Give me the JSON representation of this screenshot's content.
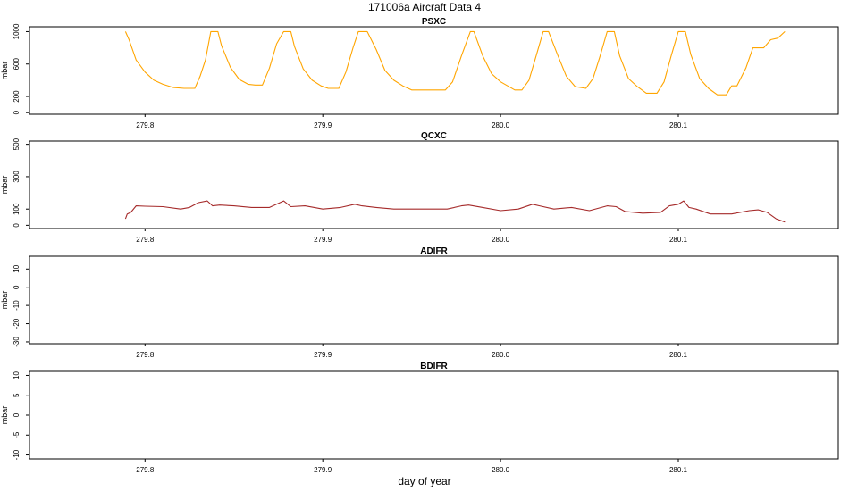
{
  "figure": {
    "title": "171006a   Aircraft Data 4",
    "xlabel": "day of year"
  },
  "chart_data": [
    {
      "type": "line",
      "title": "PSXC",
      "ylabel": "mbar",
      "xlim": [
        279.735,
        280.19
      ],
      "ylim": [
        -20,
        1060
      ],
      "yticks": [
        0,
        200,
        600,
        1000
      ],
      "xticks": [
        279.8,
        279.9,
        280.0,
        280.1
      ],
      "xtick_labels": [
        "279.8",
        "279.9",
        "280.0",
        "280.1"
      ],
      "color": "#FFA500",
      "series": [
        {
          "x": [
            279.789,
            279.791,
            279.795,
            279.8,
            279.805,
            279.81,
            279.816,
            279.822,
            279.828,
            279.831,
            279.834,
            279.837,
            279.841,
            279.843,
            279.848,
            279.853,
            279.858,
            279.862,
            279.866,
            279.87,
            279.874,
            279.878,
            279.882,
            279.884,
            279.889,
            279.894,
            279.899,
            279.903,
            279.909,
            279.913,
            279.917,
            279.92,
            279.925,
            279.93,
            279.935,
            279.94,
            279.945,
            279.95,
            279.955,
            279.96,
            279.965,
            279.969,
            279.973,
            279.978,
            279.983,
            279.985,
            279.99,
            279.995,
            280.0,
            280.008,
            280.012,
            280.016,
            280.02,
            280.024,
            280.027,
            280.032,
            280.037,
            280.042,
            280.048,
            280.052,
            280.056,
            280.06,
            280.064,
            280.067,
            280.072,
            280.077,
            280.082,
            280.088,
            280.092,
            280.096,
            280.1,
            280.104,
            280.107,
            280.112,
            280.117,
            280.122,
            280.127,
            280.13,
            280.133,
            280.138,
            280.142,
            280.148,
            280.152,
            280.156,
            280.16
          ],
          "y": [
            1000,
            900,
            650,
            500,
            400,
            350,
            310,
            300,
            300,
            450,
            650,
            1000,
            1000,
            830,
            560,
            410,
            350,
            340,
            340,
            550,
            850,
            1000,
            1000,
            820,
            540,
            400,
            330,
            300,
            300,
            500,
            800,
            1000,
            1000,
            780,
            520,
            400,
            330,
            280,
            280,
            280,
            280,
            280,
            380,
            700,
            1000,
            1000,
            700,
            480,
            380,
            280,
            280,
            400,
            700,
            1000,
            1000,
            720,
            450,
            320,
            300,
            420,
            700,
            1000,
            1000,
            700,
            420,
            320,
            240,
            240,
            380,
            700,
            1000,
            1000,
            720,
            420,
            300,
            220,
            220,
            330,
            330,
            550,
            800,
            800,
            900,
            920,
            1000
          ]
        }
      ]
    },
    {
      "type": "line",
      "title": "QCXC",
      "ylabel": "mbar",
      "xlim": [
        279.735,
        280.19
      ],
      "ylim": [
        -20,
        520
      ],
      "yticks": [
        0,
        100,
        300,
        500
      ],
      "xticks": [
        279.8,
        279.9,
        280.0,
        280.1
      ],
      "xtick_labels": [
        "279.8",
        "279.9",
        "280.0",
        "280.1"
      ],
      "color": "#A52A2A",
      "series": [
        {
          "x": [
            279.789,
            279.79,
            279.792,
            279.795,
            279.8,
            279.81,
            279.82,
            279.825,
            279.83,
            279.835,
            279.838,
            279.842,
            279.85,
            279.86,
            279.87,
            279.878,
            279.882,
            279.89,
            279.9,
            279.91,
            279.918,
            279.922,
            279.93,
            279.94,
            279.95,
            279.96,
            279.97,
            279.978,
            279.982,
            279.99,
            280.0,
            280.01,
            280.018,
            280.022,
            280.03,
            280.04,
            280.05,
            280.06,
            280.065,
            280.07,
            280.08,
            280.09,
            280.095,
            280.1,
            280.103,
            280.106,
            280.11,
            280.118,
            280.13,
            280.14,
            280.145,
            280.15,
            280.155,
            280.16
          ],
          "y": [
            40,
            70,
            80,
            120,
            118,
            115,
            100,
            110,
            140,
            150,
            120,
            125,
            120,
            110,
            110,
            150,
            115,
            120,
            100,
            110,
            130,
            120,
            110,
            100,
            100,
            100,
            100,
            120,
            125,
            110,
            90,
            100,
            130,
            120,
            100,
            110,
            90,
            120,
            115,
            85,
            75,
            80,
            120,
            130,
            150,
            110,
            100,
            70,
            70,
            90,
            95,
            80,
            40,
            20
          ]
        }
      ]
    },
    {
      "type": "line",
      "title": "ADIFR",
      "ylabel": "mbar",
      "xlim": [
        279.735,
        280.19
      ],
      "ylim": [
        -31,
        17
      ],
      "yticks": [
        -30,
        -20,
        -10,
        0,
        10
      ],
      "xticks": [
        279.8,
        279.9,
        280.0,
        280.1
      ],
      "xtick_labels": [
        "279.8",
        "279.9",
        "280.0",
        "280.1"
      ],
      "series": []
    },
    {
      "type": "line",
      "title": "BDIFR",
      "ylabel": "mbar",
      "xlim": [
        279.735,
        280.19
      ],
      "ylim": [
        -11,
        11
      ],
      "yticks": [
        -10,
        -5,
        0,
        5,
        10
      ],
      "xticks": [
        279.8,
        279.9,
        280.0,
        280.1
      ],
      "xtick_labels": [
        "279.8",
        "279.9",
        "280.0",
        "280.1"
      ],
      "series": []
    }
  ]
}
